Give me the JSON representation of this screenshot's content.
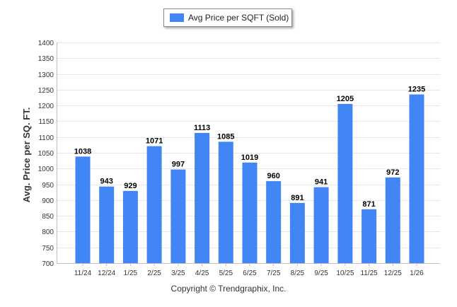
{
  "colors": {
    "bar": "#4285f4",
    "grid": "#e6e6e6",
    "axis": "#c0c0c0"
  },
  "legend": {
    "label": "Avg Price per SQFT (Sold)",
    "icon": "legend-swatch"
  },
  "footer": {
    "copyright": "Copyright © Trendgraphix, Inc."
  },
  "chart_data": {
    "type": "bar",
    "title": "",
    "xlabel": "",
    "ylabel": "Avg. Price per SQ. FT.",
    "ylim": [
      700,
      1400
    ],
    "yticks": [
      700,
      750,
      800,
      850,
      900,
      950,
      1000,
      1050,
      1100,
      1150,
      1200,
      1250,
      1300,
      1350,
      1400
    ],
    "grid": true,
    "legend_position": "top-center",
    "categories": [
      "11/24",
      "12/24",
      "1/25",
      "2/25",
      "3/25",
      "4/25",
      "5/25",
      "6/25",
      "7/25",
      "8/25",
      "9/25",
      "10/25",
      "11/25",
      "12/25",
      "1/26"
    ],
    "series": [
      {
        "name": "Avg Price per SQFT (Sold)",
        "values": [
          1038,
          943,
          929,
          1071,
          997,
          1113,
          1085,
          1019,
          960,
          891,
          941,
          1205,
          871,
          972,
          1235
        ]
      }
    ]
  }
}
